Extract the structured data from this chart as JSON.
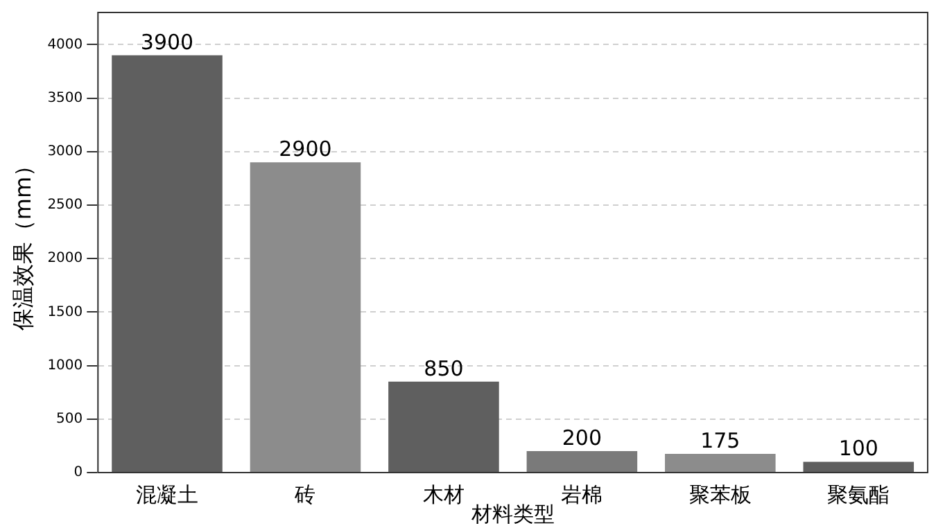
{
  "chart_data": {
    "type": "bar",
    "xlabel": "材料类型",
    "ylabel": "保温效果（mm）",
    "categories": [
      "混凝土",
      "砖",
      "木材",
      "岩棉",
      "聚苯板",
      "聚氨酯"
    ],
    "values": [
      3900,
      2900,
      850,
      200,
      175,
      100
    ],
    "colors": [
      "#5f5f5f",
      "#8c8c8c",
      "#5f5f5f",
      "#7a7a7a",
      "#8c8c8c",
      "#5f5f5f"
    ],
    "ylim": [
      0,
      4300
    ],
    "yticks": [
      0,
      500,
      1000,
      1500,
      2000,
      2500,
      3000,
      3500,
      4000
    ],
    "grid": "y",
    "data_labels": true,
    "legend": false
  }
}
